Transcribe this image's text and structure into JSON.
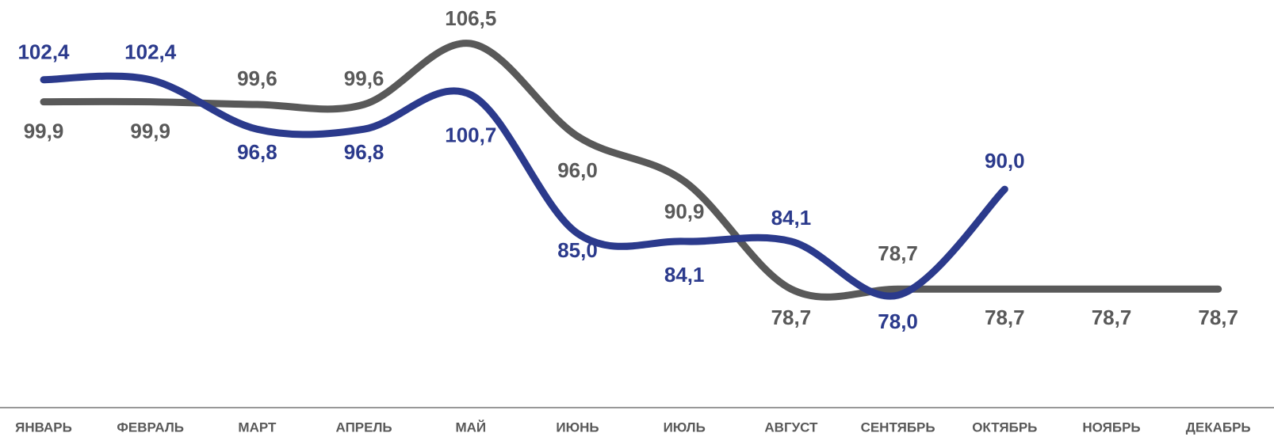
{
  "chart_data": {
    "type": "line",
    "categories": [
      "ЯНВАРЬ",
      "ФЕВРАЛЬ",
      "МАРТ",
      "АПРЕЛЬ",
      "МАЙ",
      "ИЮНЬ",
      "ИЮЛЬ",
      "АВГУСТ",
      "СЕНТЯБРЬ",
      "ОКТЯБРЬ",
      "НОЯБРЬ",
      "ДЕКАБРЬ"
    ],
    "series": [
      {
        "color": "#595959",
        "values": [
          99.9,
          99.9,
          99.6,
          99.6,
          106.5,
          96.0,
          90.9,
          78.7,
          78.7,
          78.7,
          78.7,
          78.7
        ],
        "value_labels": [
          "99,9",
          "99,9",
          "99,6",
          "99,6",
          "106,5",
          "96,0",
          "90,9",
          "78,7",
          "78,7",
          "78,7",
          "78,7",
          "78,7"
        ]
      },
      {
        "color": "#2b3a8c",
        "values": [
          102.4,
          102.4,
          96.8,
          96.8,
          100.7,
          85.0,
          84.1,
          84.1,
          78.0,
          90.0,
          null,
          null
        ],
        "value_labels": [
          "102,4",
          "102,4",
          "96,8",
          "96,8",
          "100,7",
          "85,0",
          "84,1",
          "84,1",
          "78,0",
          "90,0",
          null,
          null
        ]
      }
    ]
  }
}
